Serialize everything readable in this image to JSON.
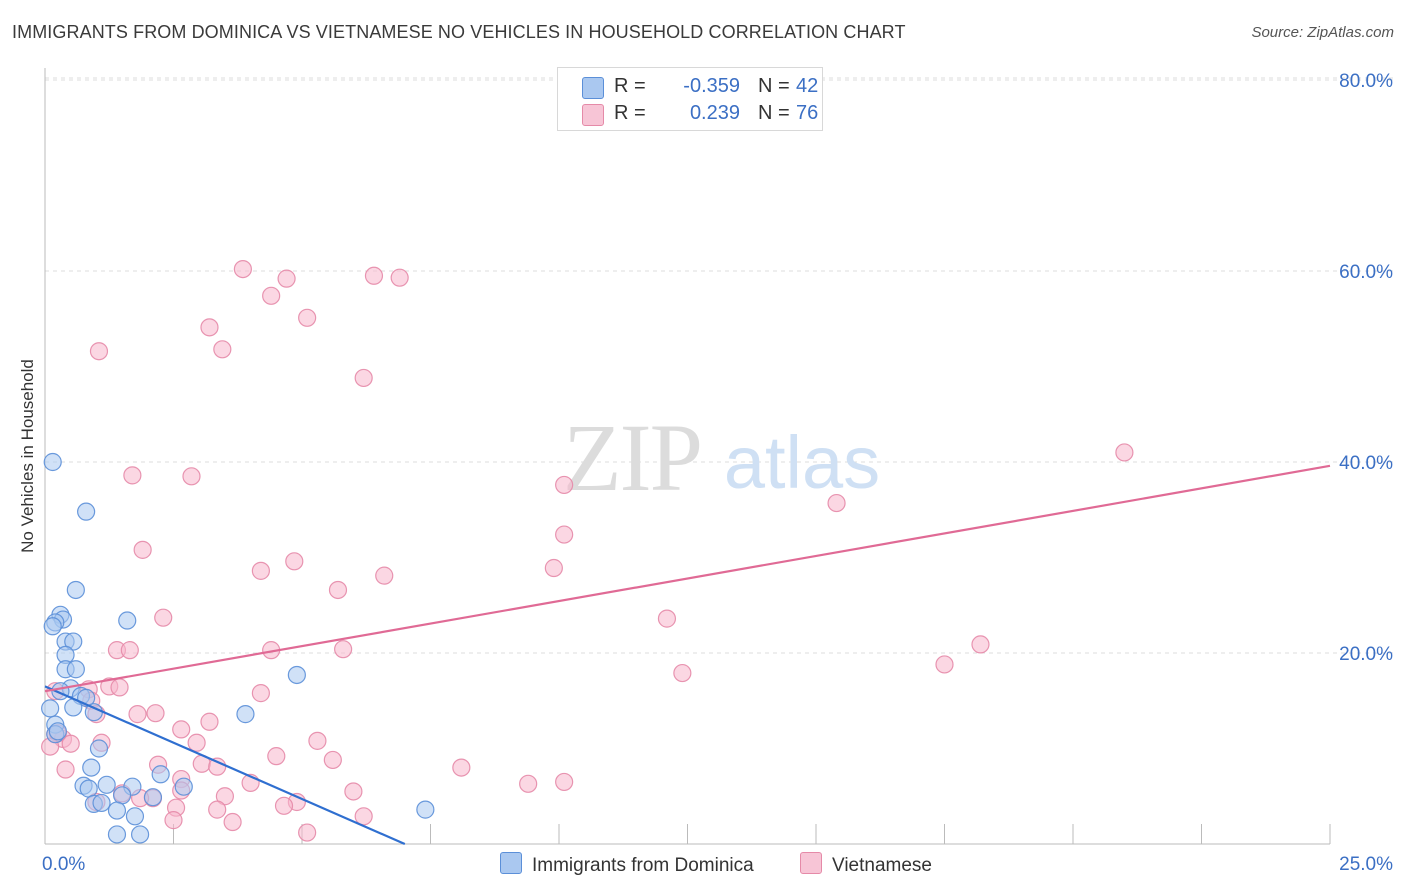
{
  "header": {
    "title": "IMMIGRANTS FROM DOMINICA VS VIETNAMESE NO VEHICLES IN HOUSEHOLD CORRELATION CHART",
    "source": "Source: ZipAtlas.com"
  },
  "watermark": {
    "zip": "ZIP",
    "atlas": "atlas"
  },
  "legend": {
    "rows": [
      {
        "r_label": "R =",
        "r_value": "-0.359",
        "n_label": "N =",
        "n_value": "42"
      },
      {
        "r_label": "R =",
        "r_value": "0.239",
        "n_label": "N =",
        "n_value": "76"
      }
    ]
  },
  "bottom_legend": [
    "Immigrants from Dominica",
    "Vietnamese"
  ],
  "colors": {
    "dominica_fill": "#aac8f0",
    "dominica_stroke": "#5b8fd8",
    "dominica_line": "#2f6fd0",
    "vietnamese_fill": "#f7b6cc",
    "vietnamese_stroke": "#e58aa8",
    "vietnamese_line": "#e06a95",
    "tick_label": "#3b6fc4",
    "grid": "#dddddd"
  },
  "chart_data": {
    "type": "scatter",
    "ylabel": "No Vehicles in Household",
    "xlim": [
      0,
      25
    ],
    "ylim": [
      0,
      80
    ],
    "x_ticks": [
      0,
      25
    ],
    "x_tick_labels": [
      "0.0%",
      "25.0%"
    ],
    "y_ticks": [
      20,
      40,
      60,
      80
    ],
    "y_tick_labels": [
      "20.0%",
      "40.0%",
      "60.0%",
      "80.0%"
    ],
    "grid": true,
    "series": [
      {
        "name": "Immigrants from Dominica",
        "r": -0.359,
        "n": 42,
        "trend": {
          "x": [
            0,
            7.0
          ],
          "y": [
            16.5,
            0
          ]
        },
        "points": [
          [
            0.15,
            40.0
          ],
          [
            0.8,
            34.8
          ],
          [
            0.6,
            26.6
          ],
          [
            0.3,
            24.0
          ],
          [
            0.35,
            23.5
          ],
          [
            0.2,
            23.2
          ],
          [
            0.15,
            22.8
          ],
          [
            1.6,
            23.4
          ],
          [
            0.4,
            21.2
          ],
          [
            0.55,
            21.2
          ],
          [
            0.4,
            19.8
          ],
          [
            0.4,
            18.3
          ],
          [
            0.6,
            18.3
          ],
          [
            0.5,
            16.3
          ],
          [
            0.7,
            15.5
          ],
          [
            0.8,
            15.3
          ],
          [
            0.55,
            14.3
          ],
          [
            0.95,
            13.8
          ],
          [
            0.1,
            14.2
          ],
          [
            0.2,
            12.5
          ],
          [
            0.2,
            11.5
          ],
          [
            1.05,
            10.0
          ],
          [
            4.9,
            17.7
          ],
          [
            3.9,
            13.6
          ],
          [
            0.9,
            8.0
          ],
          [
            1.2,
            6.2
          ],
          [
            0.75,
            6.1
          ],
          [
            1.7,
            6.0
          ],
          [
            0.85,
            5.8
          ],
          [
            0.95,
            4.2
          ],
          [
            1.1,
            4.3
          ],
          [
            1.5,
            5.1
          ],
          [
            2.1,
            4.9
          ],
          [
            2.25,
            7.3
          ],
          [
            2.7,
            6.0
          ],
          [
            1.4,
            3.5
          ],
          [
            1.75,
            2.9
          ],
          [
            1.4,
            1.0
          ],
          [
            1.85,
            1.0
          ],
          [
            7.4,
            3.6
          ],
          [
            0.25,
            11.8
          ],
          [
            0.3,
            16.0
          ]
        ]
      },
      {
        "name": "Vietnamese",
        "r": 0.239,
        "n": 76,
        "trend": {
          "x": [
            0,
            25
          ],
          "y": [
            16.0,
            39.6
          ]
        },
        "points": [
          [
            3.85,
            60.2
          ],
          [
            4.7,
            59.2
          ],
          [
            6.4,
            59.5
          ],
          [
            6.9,
            59.3
          ],
          [
            4.4,
            57.4
          ],
          [
            5.1,
            55.1
          ],
          [
            3.2,
            54.1
          ],
          [
            3.45,
            51.8
          ],
          [
            1.05,
            51.6
          ],
          [
            6.2,
            48.8
          ],
          [
            21.0,
            41.0
          ],
          [
            1.7,
            38.6
          ],
          [
            2.85,
            38.5
          ],
          [
            10.1,
            37.6
          ],
          [
            15.4,
            35.7
          ],
          [
            10.1,
            32.4
          ],
          [
            1.9,
            30.8
          ],
          [
            4.85,
            29.6
          ],
          [
            9.9,
            28.9
          ],
          [
            4.2,
            28.6
          ],
          [
            6.6,
            28.1
          ],
          [
            5.7,
            26.6
          ],
          [
            2.3,
            23.7
          ],
          [
            12.1,
            23.6
          ],
          [
            18.2,
            20.9
          ],
          [
            17.5,
            18.8
          ],
          [
            4.4,
            20.3
          ],
          [
            5.8,
            20.4
          ],
          [
            1.4,
            20.3
          ],
          [
            1.65,
            20.3
          ],
          [
            12.4,
            17.9
          ],
          [
            1.25,
            16.5
          ],
          [
            1.45,
            16.4
          ],
          [
            4.2,
            15.8
          ],
          [
            0.85,
            16.2
          ],
          [
            0.9,
            15.0
          ],
          [
            1.8,
            13.6
          ],
          [
            2.15,
            13.7
          ],
          [
            3.2,
            12.8
          ],
          [
            2.65,
            12.0
          ],
          [
            0.2,
            11.5
          ],
          [
            0.35,
            11.0
          ],
          [
            0.5,
            10.5
          ],
          [
            0.25,
            11.6
          ],
          [
            1.1,
            10.6
          ],
          [
            2.95,
            10.6
          ],
          [
            5.3,
            10.8
          ],
          [
            0.1,
            10.2
          ],
          [
            4.5,
            9.2
          ],
          [
            5.6,
            8.8
          ],
          [
            3.05,
            8.4
          ],
          [
            2.2,
            8.3
          ],
          [
            0.4,
            7.8
          ],
          [
            8.1,
            8.0
          ],
          [
            2.65,
            6.8
          ],
          [
            3.35,
            8.1
          ],
          [
            4.0,
            6.4
          ],
          [
            10.1,
            6.5
          ],
          [
            9.4,
            6.3
          ],
          [
            6.0,
            5.5
          ],
          [
            2.65,
            5.6
          ],
          [
            1.5,
            5.3
          ],
          [
            3.5,
            5.0
          ],
          [
            4.9,
            4.4
          ],
          [
            4.65,
            4.0
          ],
          [
            2.1,
            4.8
          ],
          [
            1.0,
            4.4
          ],
          [
            3.35,
            3.6
          ],
          [
            2.55,
            3.8
          ],
          [
            1.85,
            4.8
          ],
          [
            6.2,
            2.9
          ],
          [
            3.65,
            2.3
          ],
          [
            2.5,
            2.5
          ],
          [
            5.1,
            1.2
          ],
          [
            0.2,
            16.0
          ],
          [
            1.0,
            13.6
          ]
        ]
      }
    ]
  }
}
